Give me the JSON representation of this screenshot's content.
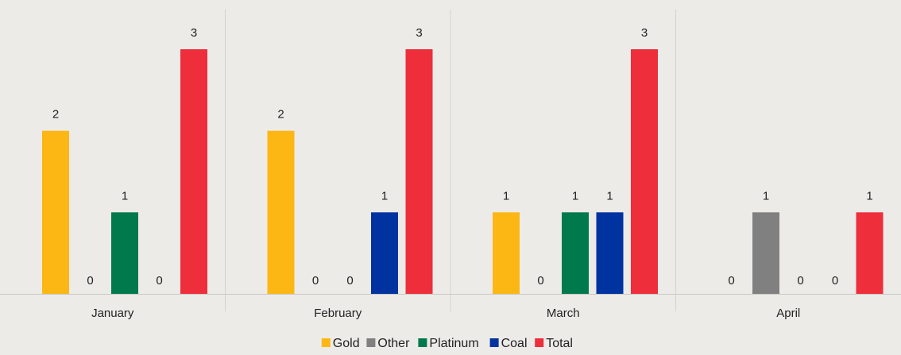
{
  "chart_data": {
    "type": "bar",
    "categories": [
      "January",
      "February",
      "March",
      "April"
    ],
    "series": [
      {
        "name": "Gold",
        "color": "#FDB714",
        "values": [
          2,
          2,
          1,
          0
        ]
      },
      {
        "name": "Other",
        "color": "#808080",
        "values": [
          0,
          0,
          0,
          1
        ]
      },
      {
        "name": "Platinum",
        "color": "#007A4D",
        "values": [
          1,
          0,
          1,
          0
        ]
      },
      {
        "name": "Coal",
        "color": "#0033A0",
        "values": [
          0,
          1,
          1,
          0
        ]
      },
      {
        "name": "Total",
        "color": "#EE2E3B",
        "values": [
          3,
          3,
          3,
          1
        ]
      }
    ],
    "ylim": [
      0,
      3
    ],
    "grid": false,
    "data_labels": true,
    "legend_position": "bottom"
  }
}
